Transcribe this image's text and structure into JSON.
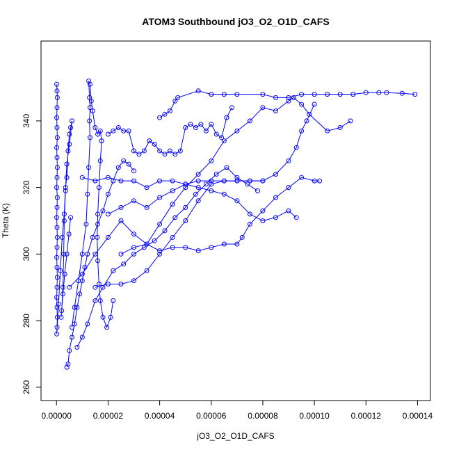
{
  "chart_data": {
    "type": "scatter",
    "title": "ATOM3 Southbound jO3_O2_O1D_CAFS",
    "xlabel": "jO3_O2_O1D_CAFS",
    "ylabel": "Theta (K)",
    "xlim": [
      -6e-06,
      0.000145
    ],
    "ylim": [
      256,
      364
    ],
    "xticks": [
      0,
      2e-05,
      4e-05,
      6e-05,
      8e-05,
      0.0001,
      0.00012,
      0.00014
    ],
    "xtick_labels": [
      "0.00000",
      "0.00002",
      "0.00004",
      "0.00006",
      "0.00008",
      "0.00010",
      "0.00012",
      "0.00014"
    ],
    "yticks": [
      260,
      280,
      300,
      320,
      340
    ],
    "ytick_labels": [
      "260",
      "280",
      "300",
      "320",
      "340"
    ],
    "grid": false,
    "marker": "open-circle",
    "connected": true,
    "color": "#0000ff",
    "series": [
      {
        "points": [
          [
            1e-07,
            351
          ],
          [
            2e-07,
            349
          ],
          [
            3e-07,
            347
          ],
          [
            2e-07,
            344
          ],
          [
            1e-07,
            341
          ],
          [
            2e-07,
            338
          ],
          [
            3e-07,
            335
          ],
          [
            1e-07,
            332
          ],
          [
            2e-07,
            329
          ],
          [
            3e-07,
            326
          ],
          [
            2e-07,
            323
          ],
          [
            1e-07,
            320
          ],
          [
            3e-07,
            317
          ],
          [
            2e-07,
            314
          ],
          [
            1e-07,
            311
          ],
          [
            2e-07,
            308
          ],
          [
            3e-07,
            305
          ],
          [
            2e-07,
            302
          ],
          [
            1e-07,
            299
          ],
          [
            2e-07,
            296
          ],
          [
            3e-07,
            293
          ],
          [
            2e-07,
            290
          ],
          [
            1e-07,
            287
          ],
          [
            2e-07,
            284
          ],
          [
            3e-07,
            281
          ],
          [
            2e-07,
            278
          ],
          [
            1e-07,
            276
          ],
          [
            8e-07,
            285
          ],
          [
            1.5e-06,
            295
          ],
          [
            2.2e-06,
            305
          ],
          [
            3e-06,
            312
          ],
          [
            3.5e-06,
            320
          ],
          [
            4e-06,
            323
          ],
          [
            4.5e-06,
            331
          ],
          [
            5e-06,
            336
          ],
          [
            5.5e-06,
            338
          ],
          [
            6e-06,
            340
          ],
          [
            5e-06,
            333
          ],
          [
            4e-06,
            327
          ],
          [
            3.5e-06,
            319
          ],
          [
            3e-06,
            310
          ],
          [
            2.8e-06,
            300
          ],
          [
            2.5e-06,
            290
          ],
          [
            2e-06,
            283
          ],
          [
            1.8e-06,
            281
          ],
          [
            2.5e-06,
            288
          ],
          [
            3.2e-06,
            294
          ],
          [
            4e-06,
            300
          ],
          [
            4.8e-06,
            306
          ],
          [
            5.5e-06,
            311
          ]
        ]
      },
      {
        "points": [
          [
            6e-06,
            278
          ],
          [
            7e-06,
            284
          ],
          [
            8.5e-06,
            292
          ],
          [
            1e-05,
            300
          ],
          [
            1.15e-05,
            309
          ],
          [
            1.2e-05,
            318
          ],
          [
            1.25e-05,
            326
          ],
          [
            1.3e-05,
            335
          ],
          [
            1.28e-05,
            340
          ],
          [
            1.3e-05,
            344
          ],
          [
            1.28e-05,
            347
          ],
          [
            1.25e-05,
            352
          ],
          [
            1.3e-05,
            351
          ],
          [
            1.35e-05,
            346
          ],
          [
            1.4e-05,
            343
          ],
          [
            1.5e-05,
            338
          ],
          [
            1.6e-05,
            336
          ],
          [
            1.7e-05,
            337
          ],
          [
            1.75e-05,
            334
          ],
          [
            1.7e-05,
            328
          ],
          [
            1.65e-05,
            320
          ],
          [
            1.6e-05,
            312
          ],
          [
            1.58e-05,
            305
          ],
          [
            1.6e-05,
            298
          ],
          [
            1.65e-05,
            291
          ],
          [
            1.7e-05,
            286
          ],
          [
            1.8e-05,
            281
          ],
          [
            1.95e-05,
            278
          ],
          [
            2.1e-05,
            281
          ],
          [
            2.2e-05,
            286
          ]
        ]
      },
      {
        "points": [
          [
            2e-05,
            336
          ],
          [
            2.2e-05,
            337
          ],
          [
            2.4e-05,
            338
          ],
          [
            2.6e-05,
            337
          ],
          [
            2.8e-05,
            337
          ],
          [
            3e-05,
            331
          ],
          [
            3.2e-05,
            330
          ],
          [
            3.4e-05,
            331
          ],
          [
            3.6e-05,
            334
          ],
          [
            3.8e-05,
            333
          ],
          [
            4e-05,
            331
          ],
          [
            4.2e-05,
            330
          ],
          [
            4.4e-05,
            331
          ],
          [
            4.6e-05,
            330
          ],
          [
            4.8e-05,
            331
          ],
          [
            5e-05,
            338
          ],
          [
            5.2e-05,
            339
          ],
          [
            5.4e-05,
            338
          ],
          [
            5.6e-05,
            339
          ],
          [
            5.8e-05,
            337
          ],
          [
            6e-05,
            339
          ],
          [
            6.2e-05,
            336
          ],
          [
            6.4e-05,
            335
          ],
          [
            6.6e-05,
            341
          ],
          [
            6.8e-05,
            344
          ]
        ]
      },
      {
        "points": [
          [
            4e-05,
            341
          ],
          [
            4.2e-05,
            342
          ],
          [
            4.4e-05,
            343
          ],
          [
            4.6e-05,
            346
          ],
          [
            4.7e-05,
            347
          ],
          [
            5.5e-05,
            349
          ],
          [
            6e-05,
            348
          ],
          [
            6.5e-05,
            348
          ],
          [
            7e-05,
            348
          ],
          [
            8e-05,
            348
          ],
          [
            8.5e-05,
            347
          ],
          [
            9e-05,
            347
          ],
          [
            9.5e-05,
            348
          ],
          [
            0.0001,
            348
          ],
          [
            0.000105,
            348
          ],
          [
            0.00011,
            348
          ],
          [
            0.000115,
            348
          ],
          [
            0.00012,
            348.5
          ],
          [
            0.000125,
            348.5
          ],
          [
            0.000128,
            348.5
          ],
          [
            0.000134,
            348.3
          ],
          [
            0.000139,
            348
          ]
        ]
      },
      {
        "points": [
          [
            2.5e-05,
            300
          ],
          [
            3e-05,
            302
          ],
          [
            3.5e-05,
            303
          ],
          [
            4e-05,
            301
          ],
          [
            4.5e-05,
            302
          ],
          [
            5e-05,
            302
          ],
          [
            5.5e-05,
            301
          ],
          [
            6e-05,
            302
          ],
          [
            6.5e-05,
            303
          ],
          [
            7e-05,
            303
          ],
          [
            7.2e-05,
            305
          ],
          [
            7.5e-05,
            309
          ],
          [
            8e-05,
            313
          ],
          [
            8.5e-05,
            317
          ],
          [
            9e-05,
            320
          ],
          [
            9.5e-05,
            323
          ],
          [
            0.0001,
            322
          ],
          [
            0.000102,
            322
          ]
        ]
      },
      {
        "points": [
          [
            1.5e-05,
            290
          ],
          [
            2e-05,
            291
          ],
          [
            2.5e-05,
            291
          ],
          [
            3e-05,
            292
          ],
          [
            3.5e-05,
            295
          ],
          [
            4e-05,
            300
          ],
          [
            4.5e-05,
            305
          ],
          [
            5e-05,
            310
          ],
          [
            5.5e-05,
            316
          ],
          [
            6e-05,
            321
          ],
          [
            6.5e-05,
            322
          ],
          [
            7e-05,
            322
          ],
          [
            7.5e-05,
            322
          ],
          [
            8e-05,
            322
          ],
          [
            8.5e-05,
            324
          ],
          [
            9e-05,
            328
          ],
          [
            9.3e-05,
            332
          ],
          [
            9.5e-05,
            337
          ],
          [
            9.7e-05,
            340
          ],
          [
            0.0001,
            345
          ]
        ]
      },
      {
        "points": [
          [
            1e-05,
            323
          ],
          [
            1.5e-05,
            322
          ],
          [
            2e-05,
            323
          ],
          [
            2.5e-05,
            322
          ],
          [
            3e-05,
            322
          ],
          [
            3.5e-05,
            320
          ],
          [
            4e-05,
            322
          ],
          [
            4.5e-05,
            322
          ],
          [
            5e-05,
            321
          ],
          [
            5.5e-05,
            322
          ],
          [
            6e-05,
            322
          ],
          [
            6.5e-05,
            322
          ],
          [
            7e-05,
            322
          ],
          [
            7.5e-05,
            322
          ],
          [
            8e-05,
            322
          ]
        ]
      },
      {
        "points": [
          [
            2e-05,
            312
          ],
          [
            2.5e-05,
            314
          ],
          [
            3e-05,
            316
          ],
          [
            3.5e-05,
            314
          ],
          [
            4e-05,
            317
          ],
          [
            4.5e-05,
            319
          ],
          [
            5e-05,
            321
          ],
          [
            5.5e-05,
            320
          ],
          [
            6e-05,
            319
          ],
          [
            6.5e-05,
            318
          ],
          [
            7e-05,
            316
          ],
          [
            7.5e-05,
            312
          ],
          [
            8e-05,
            310
          ],
          [
            8.5e-05,
            311
          ],
          [
            9e-05,
            313
          ],
          [
            9.3e-05,
            311
          ]
        ]
      },
      {
        "points": [
          [
            5e-06,
            290
          ],
          [
            1e-05,
            294
          ],
          [
            1.5e-05,
            300
          ],
          [
            2e-05,
            305
          ],
          [
            2.5e-05,
            310
          ],
          [
            3e-05,
            306
          ],
          [
            3.5e-05,
            303
          ],
          [
            4e-05,
            309
          ],
          [
            4.5e-05,
            315
          ],
          [
            5e-05,
            320
          ],
          [
            5.5e-05,
            324
          ],
          [
            6e-05,
            328
          ],
          [
            6.5e-05,
            334
          ],
          [
            7e-05,
            337
          ],
          [
            7.5e-05,
            340
          ],
          [
            8e-05,
            344
          ],
          [
            8.5e-05,
            343
          ],
          [
            9e-05,
            346
          ],
          [
            9.2e-05,
            347
          ],
          [
            9.5e-05,
            345
          ],
          [
            9.8e-05,
            342
          ],
          [
            0.000105,
            337
          ],
          [
            0.00011,
            338
          ],
          [
            0.000114,
            340
          ]
        ]
      },
      {
        "points": [
          [
            8e-06,
            272
          ],
          [
            1e-05,
            275
          ],
          [
            1.2e-05,
            279
          ],
          [
            1.5e-05,
            286
          ],
          [
            1.8e-05,
            290
          ],
          [
            2.2e-05,
            295
          ],
          [
            2.6e-05,
            297
          ],
          [
            3e-05,
            300
          ],
          [
            3.4e-05,
            302
          ],
          [
            3.8e-05,
            304
          ],
          [
            4.2e-05,
            307
          ],
          [
            4.6e-05,
            311
          ],
          [
            5e-05,
            314
          ],
          [
            5.4e-05,
            318
          ],
          [
            5.8e-05,
            321
          ],
          [
            6.2e-05,
            324
          ],
          [
            6.6e-05,
            326
          ],
          [
            7e-05,
            323
          ],
          [
            7.4e-05,
            321
          ],
          [
            7.8e-05,
            319
          ]
        ]
      },
      {
        "points": [
          [
            4e-06,
            266
          ],
          [
            4.5e-06,
            267
          ],
          [
            5e-06,
            271
          ],
          [
            6e-06,
            275
          ],
          [
            7e-06,
            279
          ],
          [
            8e-06,
            284
          ],
          [
            9e-06,
            288
          ],
          [
            1e-05,
            292
          ],
          [
            1.1e-05,
            296
          ],
          [
            1.2e-05,
            300
          ],
          [
            1.4e-05,
            305
          ],
          [
            1.6e-05,
            309
          ],
          [
            1.8e-05,
            313
          ],
          [
            2e-05,
            318
          ],
          [
            2.2e-05,
            322
          ],
          [
            2.4e-05,
            326
          ],
          [
            2.6e-05,
            328
          ],
          [
            2.8e-05,
            327
          ],
          [
            3e-05,
            325
          ]
        ]
      }
    ]
  }
}
